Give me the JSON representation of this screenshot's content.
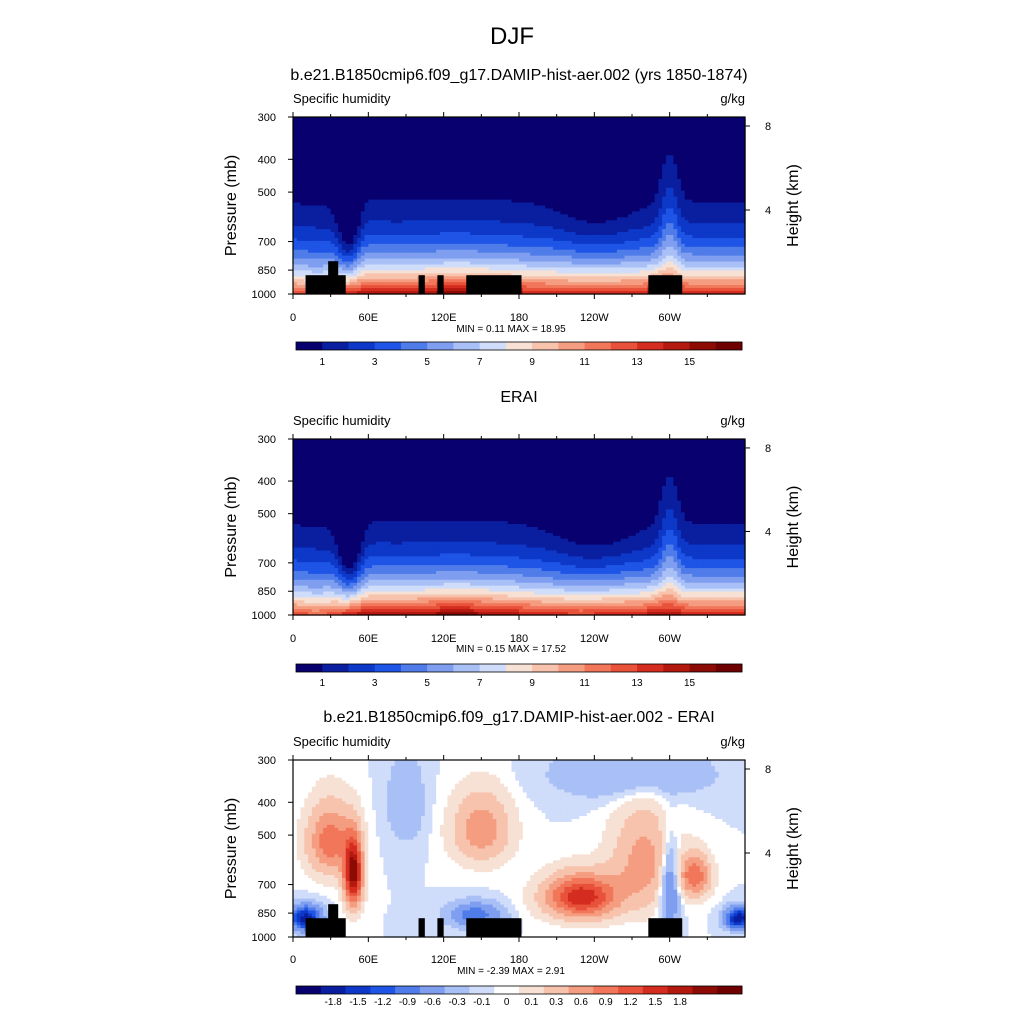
{
  "figure": {
    "title": "DJF"
  },
  "colors": {
    "humidity_scale": [
      "#08006e",
      "#0a1ea0",
      "#0d38c8",
      "#1f55e6",
      "#4f7ce8",
      "#7f9ef0",
      "#a9c0f7",
      "#cfdcfa",
      "#f6e1d4",
      "#f7c3ad",
      "#f59d80",
      "#f1765a",
      "#e8513a",
      "#d42d1f",
      "#b4190f",
      "#8c0b05",
      "#6e0000"
    ],
    "diff_scale": [
      "#08006e",
      "#0a1ea0",
      "#0d38c8",
      "#1f55e6",
      "#4f7ce8",
      "#7f9ef0",
      "#a9c0f7",
      "#cfdcfa",
      "#ffffff",
      "#f6e1d4",
      "#f7c3ad",
      "#f59d80",
      "#f1765a",
      "#e8513a",
      "#d42d1f",
      "#b4190f",
      "#8c0b05",
      "#6e0000"
    ],
    "missing": "#000000"
  },
  "chart_data": [
    {
      "type": "heatmap",
      "title": "b.e21.B1850cmip6.f09_g17.DAMIP-hist-aer.002 (yrs 1850-1874)",
      "left_label": "Specific humidity",
      "right_label": "g/kg",
      "ylabel": "Pressure (mb)",
      "y2label": "Height (km)",
      "x_ticks": [
        "0",
        "60E",
        "120E",
        "180",
        "120W",
        "60W"
      ],
      "x_tick_lon": [
        0,
        60,
        120,
        180,
        240,
        300
      ],
      "y_ticks": [
        "300",
        "400",
        "500",
        "700",
        "850",
        "1000"
      ],
      "y_tick_p": [
        300,
        400,
        500,
        700,
        850,
        1000
      ],
      "y2_ticks": [
        "8",
        "4"
      ],
      "y2_tick_km": [
        8,
        4
      ],
      "ylim": [
        1000,
        300
      ],
      "xlim": [
        0,
        360
      ],
      "stats": "MIN =   0.11  MAX =   18.95",
      "min": 0.11,
      "max": 18.95,
      "colorbar_labels": [
        "1",
        "3",
        "5",
        "7",
        "9",
        "11",
        "13",
        "15"
      ],
      "colorbar_levels": [
        1,
        3,
        5,
        7,
        9,
        11,
        13,
        15
      ],
      "topography_masked": true
    },
    {
      "type": "heatmap",
      "title": "ERAI",
      "left_label": "Specific humidity",
      "right_label": "g/kg",
      "ylabel": "Pressure (mb)",
      "y2label": "Height (km)",
      "x_ticks": [
        "0",
        "60E",
        "120E",
        "180",
        "120W",
        "60W"
      ],
      "x_tick_lon": [
        0,
        60,
        120,
        180,
        240,
        300
      ],
      "y_ticks": [
        "300",
        "400",
        "500",
        "700",
        "850",
        "1000"
      ],
      "y_tick_p": [
        300,
        400,
        500,
        700,
        850,
        1000
      ],
      "y2_ticks": [
        "8",
        "4"
      ],
      "y2_tick_km": [
        8,
        4
      ],
      "ylim": [
        1000,
        300
      ],
      "xlim": [
        0,
        360
      ],
      "stats": "MIN =   0.15  MAX =   17.52",
      "min": 0.15,
      "max": 17.52,
      "colorbar_labels": [
        "1",
        "3",
        "5",
        "7",
        "9",
        "11",
        "13",
        "15"
      ],
      "colorbar_levels": [
        1,
        3,
        5,
        7,
        9,
        11,
        13,
        15
      ],
      "topography_masked": false
    },
    {
      "type": "heatmap",
      "title": "b.e21.B1850cmip6.f09_g17.DAMIP-hist-aer.002 - ERAI",
      "left_label": "Specific humidity",
      "right_label": "g/kg",
      "ylabel": "Pressure (mb)",
      "y2label": "Height (km)",
      "x_ticks": [
        "0",
        "60E",
        "120E",
        "180",
        "120W",
        "60W"
      ],
      "x_tick_lon": [
        0,
        60,
        120,
        180,
        240,
        300
      ],
      "y_ticks": [
        "300",
        "400",
        "500",
        "700",
        "850",
        "1000"
      ],
      "y_tick_p": [
        300,
        400,
        500,
        700,
        850,
        1000
      ],
      "y2_ticks": [
        "8",
        "4"
      ],
      "y2_tick_km": [
        8,
        4
      ],
      "ylim": [
        1000,
        300
      ],
      "xlim": [
        0,
        360
      ],
      "stats": "MIN =  -2.39  MAX =   2.91",
      "min": -2.39,
      "max": 2.91,
      "colorbar_labels": [
        "-1.8",
        "-1.5",
        "-1.2",
        "-0.9",
        "-0.6",
        "-0.3",
        "-0.1",
        "0",
        "0.1",
        "0.3",
        "0.6",
        "0.9",
        "1.2",
        "1.5",
        "1.8"
      ],
      "colorbar_levels": [
        -1.8,
        -1.5,
        -1.2,
        -0.9,
        -0.6,
        -0.3,
        -0.1,
        0,
        0.1,
        0.3,
        0.6,
        0.9,
        1.2,
        1.5,
        1.8
      ],
      "topography_masked": true
    }
  ],
  "topography_mask": [
    {
      "lon": [
        10,
        42
      ],
      "p_top": 880
    },
    {
      "lon": [
        28,
        36
      ],
      "p_top": 800
    },
    {
      "lon": [
        100,
        105
      ],
      "p_top": 880
    },
    {
      "lon": [
        115,
        120
      ],
      "p_top": 880
    },
    {
      "lon": [
        138,
        182
      ],
      "p_top": 880
    },
    {
      "lon": [
        283,
        310
      ],
      "p_top": 880
    }
  ]
}
